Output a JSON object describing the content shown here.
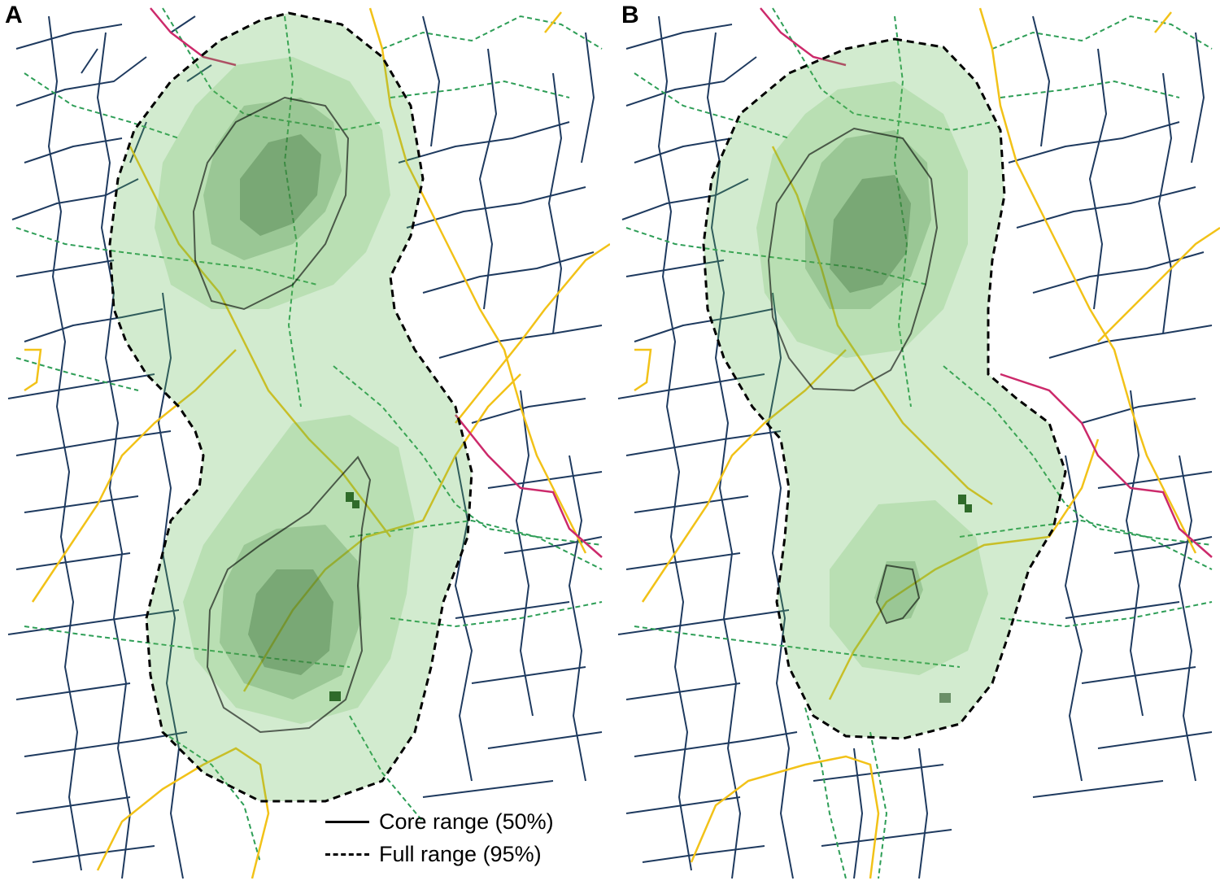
{
  "panels": [
    {
      "label": "A"
    },
    {
      "label": "B"
    }
  ],
  "legend": {
    "core": "Core range (50%)",
    "full": "Full range (95%)"
  },
  "colors": {
    "hedgerow": "#1e3a5f",
    "footpath": "#2e9e57",
    "minor_road": "#f2c218",
    "major_road": "#cc2a6b",
    "kde_fill": "#5fb852",
    "range_outline": "#000000"
  }
}
